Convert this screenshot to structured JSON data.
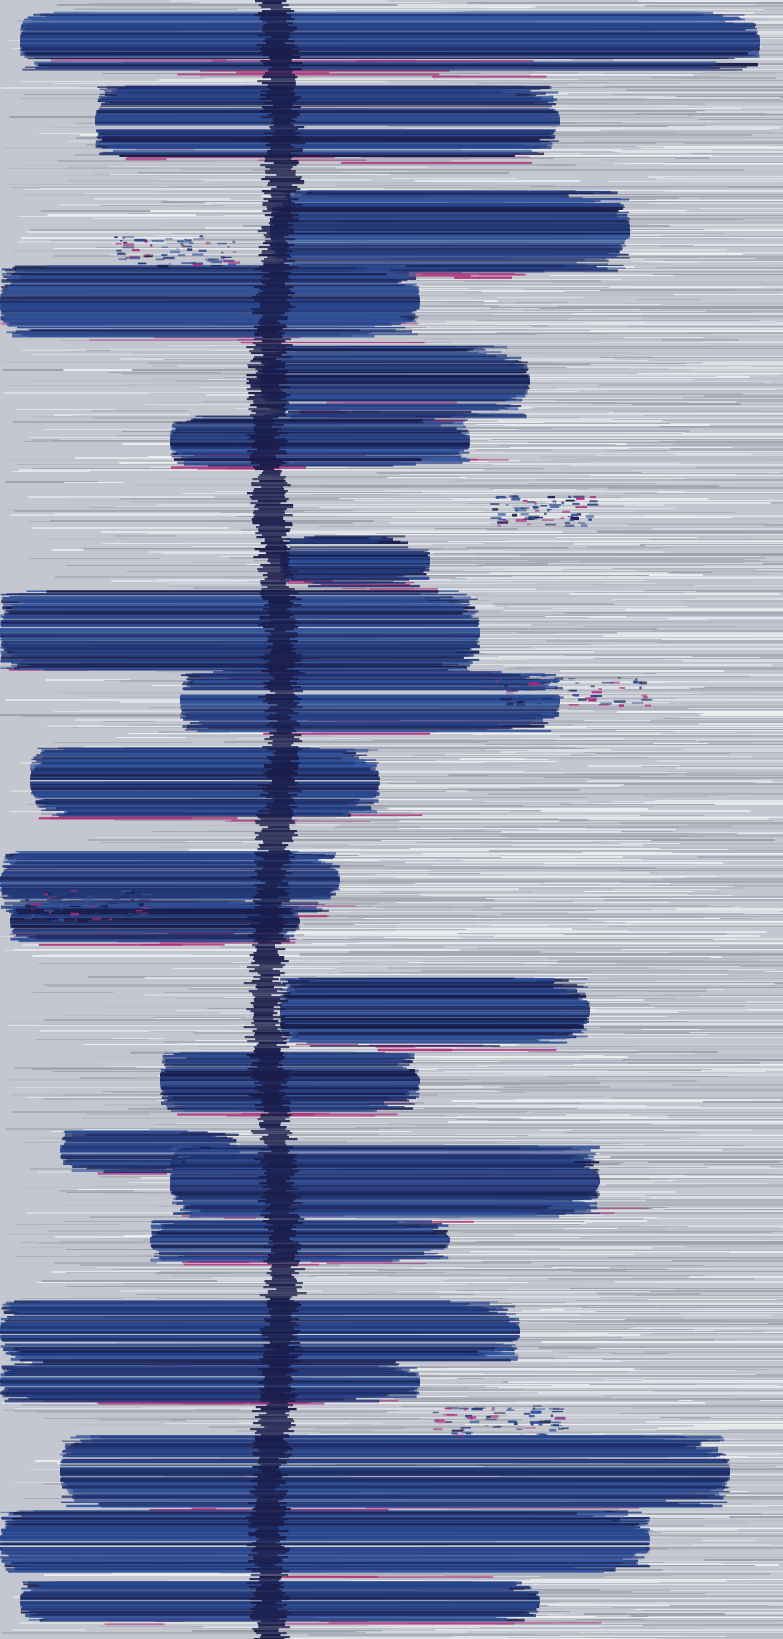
{
  "artwork": {
    "palette": {
      "background_light": "#dfe2e6",
      "background_mid": "#b9bcc6",
      "background_gray": "#9da1ab",
      "navy_dark": "#1a1d4a",
      "navy": "#233a7a",
      "blue": "#2e4f96",
      "magenta": "#b02a78"
    },
    "motif": "horizontal-brush-strokes"
  }
}
